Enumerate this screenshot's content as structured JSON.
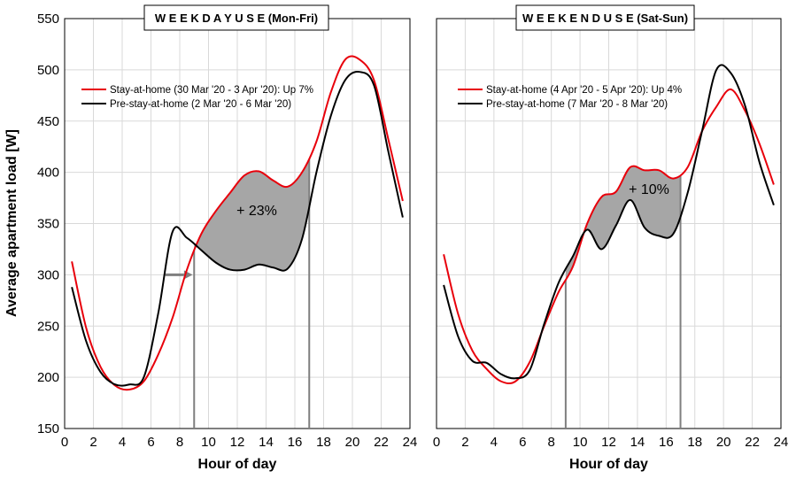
{
  "y_axis_label": "Average apartment load [W]",
  "chart_data": [
    {
      "type": "line",
      "title": "W E E K D A Y  U S E  (Mon-Fri)",
      "xlabel": "Hour of day",
      "ylabel": "Average apartment load [W]",
      "xlim": [
        0,
        24
      ],
      "ylim": [
        150,
        550
      ],
      "xticks": [
        "0",
        "2",
        "4",
        "6",
        "8",
        "10",
        "12",
        "14",
        "16",
        "18",
        "20",
        "22",
        "24"
      ],
      "yticks": [
        "150",
        "200",
        "250",
        "300",
        "350",
        "400",
        "450",
        "500",
        "550"
      ],
      "grid": true,
      "legend_position": "top-left",
      "annotation": "+ 23%",
      "shaded_interval": [
        9,
        17
      ],
      "series": [
        {
          "name": "Stay-at-home (30 Mar '20 - 3 Apr '20): Up 7%",
          "color": "#e8000b",
          "x": [
            0.5,
            1.5,
            2.5,
            3.5,
            4.5,
            5.5,
            6.5,
            7.5,
            8.5,
            9.5,
            10.5,
            11.5,
            12.5,
            13.5,
            14.5,
            15.5,
            16.5,
            17.5,
            18.5,
            19.5,
            20.5,
            21.5,
            22.5,
            23.5
          ],
          "y": [
            313,
            248,
            210,
            192,
            188,
            196,
            222,
            258,
            305,
            340,
            362,
            380,
            397,
            401,
            392,
            386,
            400,
            430,
            478,
            510,
            510,
            490,
            432,
            372
          ]
        },
        {
          "name": "Pre-stay-at-home (2 Mar '20 - 6 Mar '20)",
          "color": "#000000",
          "x": [
            0.5,
            1.5,
            2.5,
            3.5,
            4.5,
            5.5,
            6.5,
            7.5,
            8.5,
            9.5,
            10.5,
            11.5,
            12.5,
            13.5,
            14.5,
            15.5,
            16.5,
            17.5,
            18.5,
            19.5,
            20.5,
            21.5,
            22.5,
            23.5
          ],
          "y": [
            288,
            235,
            205,
            193,
            193,
            200,
            262,
            342,
            336,
            324,
            312,
            305,
            305,
            310,
            307,
            306,
            335,
            400,
            455,
            490,
            498,
            485,
            420,
            356
          ]
        }
      ]
    },
    {
      "type": "line",
      "title": "W E E K E N D  U S E  (Sat-Sun)",
      "xlabel": "Hour of day",
      "ylabel": "",
      "xlim": [
        0,
        24
      ],
      "ylim": [
        150,
        550
      ],
      "xticks": [
        "0",
        "2",
        "4",
        "6",
        "8",
        "10",
        "12",
        "14",
        "16",
        "18",
        "20",
        "22",
        "24"
      ],
      "grid": true,
      "legend_position": "top-left",
      "annotation": "+ 10%",
      "shaded_interval": [
        9,
        17
      ],
      "series": [
        {
          "name": "Stay-at-home (4 Apr '20 - 5 Apr '20): Up 4%",
          "color": "#e8000b",
          "x": [
            0.5,
            1.5,
            2.5,
            3.5,
            4.5,
            5.5,
            6.5,
            7.5,
            8.5,
            9.5,
            10.5,
            11.5,
            12.5,
            13.5,
            14.5,
            15.5,
            16.5,
            17.5,
            18.5,
            19.5,
            20.5,
            21.5,
            22.5,
            23.5
          ],
          "y": [
            320,
            262,
            226,
            208,
            196,
            196,
            215,
            250,
            283,
            308,
            350,
            376,
            381,
            405,
            402,
            402,
            394,
            405,
            440,
            464,
            481,
            460,
            428,
            388
          ]
        },
        {
          "name": "Pre-stay-at-home (7 Mar '20 - 8 Mar '20)",
          "color": "#000000",
          "x": [
            0.5,
            1.5,
            2.5,
            3.5,
            4.5,
            5.5,
            6.5,
            7.5,
            8.5,
            9.5,
            10.5,
            11.5,
            12.5,
            13.5,
            14.5,
            15.5,
            16.5,
            17.5,
            18.5,
            19.5,
            20.5,
            21.5,
            22.5,
            23.5
          ],
          "y": [
            290,
            240,
            216,
            214,
            203,
            199,
            207,
            252,
            292,
            318,
            344,
            325,
            348,
            373,
            346,
            338,
            340,
            380,
            440,
            500,
            497,
            465,
            410,
            368
          ]
        }
      ]
    }
  ]
}
